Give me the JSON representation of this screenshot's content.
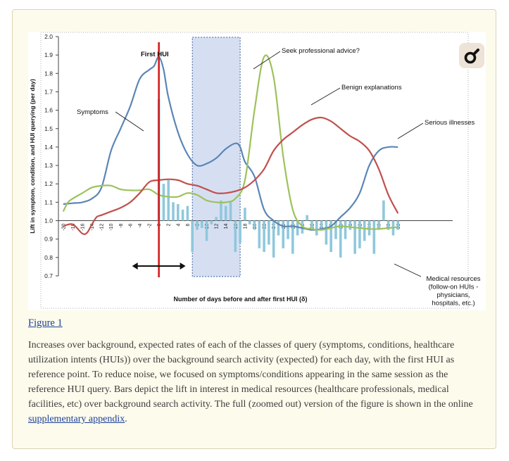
{
  "figure_link": "Figure 1",
  "caption": {
    "text_before": "Increases over background, expected rates of each of the classes of query (symptoms, conditions, healthcare utilization intents (HUIs)) over the background search activity (expected) for each day, with the first HUI as reference point. To reduce noise, we focused on symptoms/conditions appearing in the same session as the reference HUI query. Bars depict the lift in interest in medical resources (healthcare professionals, medical facilities, etc) over background search activity. The full (zoomed out) version of the figure is shown in the online ",
    "link_text": "supplementary appendix",
    "text_after": "."
  },
  "icon": "zoom-tool-icon",
  "colors": {
    "symptoms": "#5b86b5",
    "benign": "#9dc25c",
    "serious": "#c0504d",
    "bars": "#8fc8dc",
    "first_hui": "#d41c1c",
    "shade": "#d6dff2"
  },
  "chart_data": {
    "type": "line",
    "ylabel": "Lift in symptom, condition, and HUI querying (per day)",
    "xlabel": "Number of days before and after first HUI (δ)",
    "ylim": [
      0.7,
      2.0
    ],
    "xlim": [
      -21,
      61
    ],
    "yticks": [
      "0.7",
      "0.8",
      "0.9",
      "1.0",
      "1.1",
      "1.2",
      "1.3",
      "1.4",
      "1.5",
      "1.6",
      "1.7",
      "1.8",
      "1.9",
      "2.0"
    ],
    "xticks": [
      "-20",
      "-18",
      "-16",
      "-14",
      "-12",
      "-10",
      "-8",
      "-6",
      "-4",
      "-2",
      "0",
      "2",
      "4",
      "6",
      "8",
      "10",
      "12",
      "14",
      "16",
      "18",
      "20",
      "22",
      "24",
      "26",
      "28",
      "30",
      "32",
      "34",
      "36",
      "38",
      "40",
      "42",
      "44",
      "46",
      "48",
      "50"
    ],
    "grid": false,
    "shaded_region": [
      7,
      17
    ],
    "vline_x": 0,
    "arrow_range": [
      -5,
      5
    ],
    "annotations": {
      "first_hui": "First HUI",
      "seek_advice": "Seek professional advice?",
      "symptoms": "Symptoms",
      "benign": "Benign explanations",
      "serious": "Serious illnesses",
      "medical": [
        "Medical resources",
        "(follow-on HUIs -",
        "physicians,",
        "hospitals, etc.)"
      ]
    },
    "series": [
      {
        "name": "Symptoms",
        "x": [
          -20,
          -18,
          -16,
          -14,
          -12,
          -10,
          -8,
          -6,
          -4,
          -2,
          -1,
          0,
          1,
          2,
          4,
          6,
          8,
          10,
          12,
          14,
          16,
          17,
          18,
          20,
          22,
          24,
          26,
          28,
          30,
          32,
          34,
          36,
          38,
          40,
          42,
          44,
          46,
          48,
          50
        ],
        "values": [
          1.09,
          1.095,
          1.1,
          1.12,
          1.18,
          1.38,
          1.5,
          1.62,
          1.77,
          1.82,
          1.84,
          1.89,
          1.82,
          1.67,
          1.48,
          1.36,
          1.3,
          1.31,
          1.34,
          1.39,
          1.42,
          1.4,
          1.32,
          1.24,
          1.06,
          1.0,
          0.97,
          0.97,
          0.96,
          0.95,
          0.955,
          0.97,
          1.02,
          1.07,
          1.15,
          1.3,
          1.38,
          1.4,
          1.4
        ]
      },
      {
        "name": "Benign explanations",
        "x": [
          -20,
          -19,
          -18,
          -16,
          -14,
          -12,
          -10,
          -8,
          -6,
          -4,
          -2,
          0,
          2,
          4,
          6,
          8,
          10,
          12,
          14,
          16,
          18,
          20,
          22,
          24,
          26,
          28,
          30,
          32,
          34,
          36,
          38,
          40,
          42,
          44,
          46,
          48,
          50
        ],
        "values": [
          1.05,
          1.1,
          1.12,
          1.15,
          1.18,
          1.19,
          1.19,
          1.17,
          1.165,
          1.165,
          1.17,
          1.14,
          1.13,
          1.13,
          1.15,
          1.14,
          1.11,
          1.1,
          1.1,
          1.12,
          1.22,
          1.6,
          1.89,
          1.78,
          1.35,
          1.06,
          0.97,
          0.955,
          0.95,
          0.96,
          0.97,
          0.965,
          0.96,
          0.955,
          0.955,
          0.96,
          0.965
        ]
      },
      {
        "name": "Serious illnesses",
        "x": [
          -20,
          -18,
          -16,
          -15,
          -14,
          -13,
          -12,
          -10,
          -8,
          -6,
          -4,
          -2,
          0,
          2,
          4,
          6,
          8,
          10,
          12,
          14,
          16,
          18,
          20,
          22,
          24,
          26,
          28,
          30,
          32,
          34,
          36,
          38,
          40,
          42,
          44,
          46,
          48,
          50
        ],
        "values": [
          0.97,
          0.98,
          0.93,
          0.935,
          0.98,
          1.02,
          1.03,
          1.05,
          1.07,
          1.1,
          1.15,
          1.21,
          1.22,
          1.225,
          1.22,
          1.2,
          1.19,
          1.17,
          1.15,
          1.15,
          1.16,
          1.18,
          1.22,
          1.28,
          1.38,
          1.44,
          1.48,
          1.52,
          1.55,
          1.56,
          1.54,
          1.5,
          1.46,
          1.43,
          1.38,
          1.28,
          1.14,
          1.04
        ]
      },
      {
        "name": "Medical resources",
        "type": "bar",
        "x": [
          0,
          1,
          2,
          3,
          4,
          5,
          6,
          7,
          8,
          9,
          10,
          11,
          12,
          13,
          14,
          15,
          16,
          17,
          18,
          19,
          20,
          21,
          22,
          23,
          24,
          25,
          26,
          27,
          28,
          29,
          30,
          31,
          32,
          33,
          34,
          35,
          36,
          37,
          38,
          39,
          40,
          41,
          42,
          43,
          44,
          45,
          46,
          47,
          48,
          49,
          50
        ],
        "values": [
          1.66,
          1.2,
          1.22,
          1.1,
          1.09,
          1.06,
          1.08,
          0.83,
          0.95,
          0.96,
          0.89,
          0.98,
          1.02,
          1.11,
          1.08,
          1.1,
          0.83,
          0.88,
          1.07,
          0.98,
          0.95,
          0.85,
          0.83,
          0.87,
          0.8,
          0.92,
          0.85,
          0.9,
          0.82,
          0.92,
          0.93,
          1.03,
          0.96,
          0.92,
          0.95,
          0.87,
          0.83,
          0.9,
          0.8,
          0.9,
          0.95,
          0.82,
          0.85,
          0.89,
          0.92,
          0.82,
          0.95,
          1.11,
          0.95,
          0.92,
          0.95
        ]
      }
    ]
  }
}
